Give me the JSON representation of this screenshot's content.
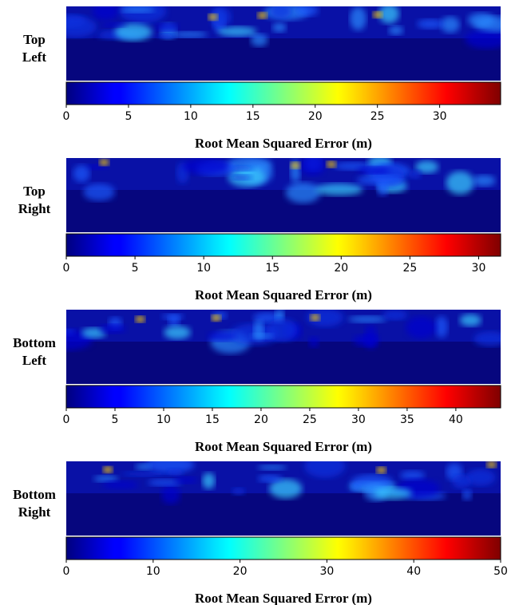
{
  "chart_data": [
    {
      "type": "heatmap",
      "label": [
        "Top",
        "Left"
      ],
      "colormap": "jet",
      "xlabel": "Root Mean Squared Error (m)",
      "xlim": [
        0,
        34.9
      ],
      "xticks": [
        0,
        5,
        10,
        15,
        20,
        25,
        30
      ]
    },
    {
      "type": "heatmap",
      "label": [
        "Top",
        "Right"
      ],
      "colormap": "jet",
      "xlabel": "Root Mean Squared Error (m)",
      "xlim": [
        0,
        31.6
      ],
      "xticks": [
        0,
        5,
        10,
        15,
        20,
        25,
        30
      ]
    },
    {
      "type": "heatmap",
      "label": [
        "Bottom",
        "Left"
      ],
      "colormap": "jet",
      "xlabel": "Root Mean Squared Error (m)",
      "xlim": [
        0,
        44.6
      ],
      "xticks": [
        0,
        5,
        10,
        15,
        20,
        25,
        30,
        35,
        40
      ]
    },
    {
      "type": "heatmap",
      "label": [
        "Bottom",
        "Right"
      ],
      "colormap": "jet",
      "xlabel": "Root Mean Squared Error (m)",
      "xlim": [
        0,
        50
      ],
      "xticks": [
        0,
        10,
        20,
        30,
        40,
        50
      ]
    }
  ]
}
